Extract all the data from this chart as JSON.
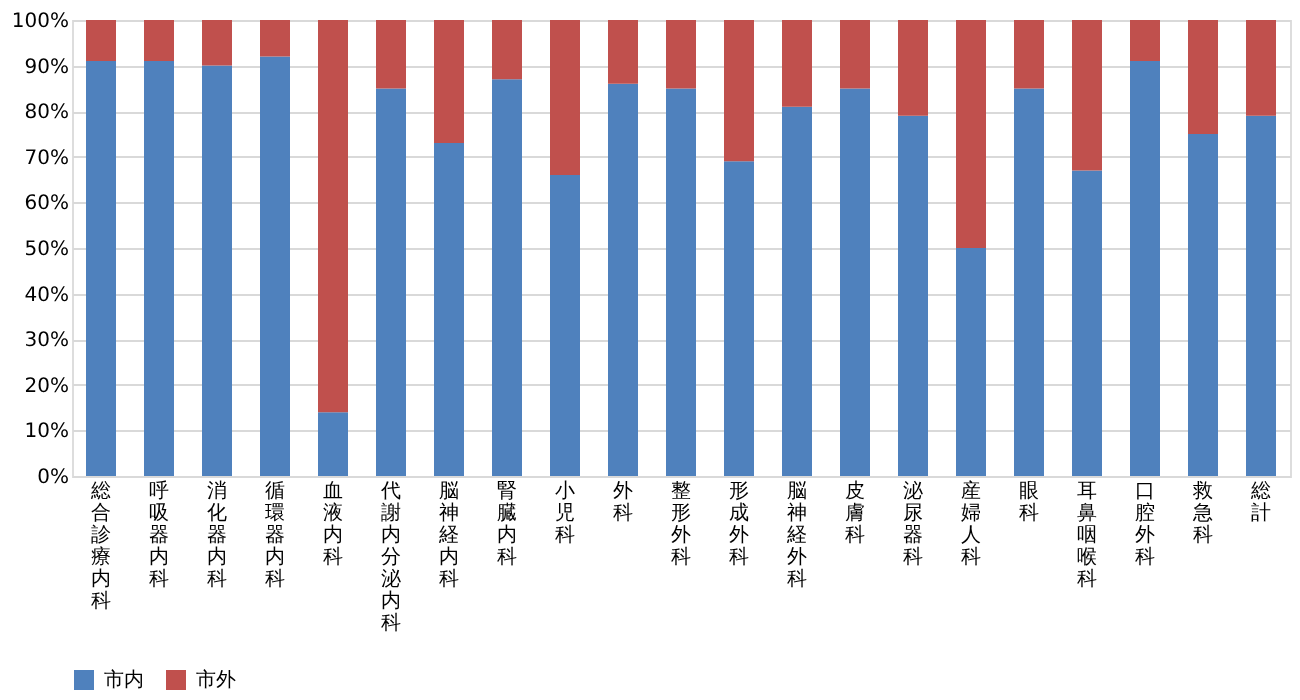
{
  "chart_data": {
    "type": "bar",
    "stacked": true,
    "categories": [
      "総合診療内科",
      "呼吸器内科",
      "消化器内科",
      "循環器内科",
      "血液内科",
      "代謝内分泌内科",
      "脳神経内科",
      "腎臓内科",
      "小児科",
      "外科",
      "整形外科",
      "形成外科",
      "脳神経外科",
      "皮膚科",
      "泌尿器科",
      "産婦人科",
      "眼科",
      "耳鼻咽喉科",
      "口腔外科",
      "救急科",
      "総計"
    ],
    "series": [
      {
        "name": "市内",
        "color": "#4f81bd",
        "values": [
          91,
          91,
          90,
          92,
          14,
          85,
          73,
          87,
          66,
          86,
          85,
          69,
          81,
          85,
          79,
          50,
          85,
          67,
          91,
          75,
          79
        ]
      },
      {
        "name": "市外",
        "color": "#c0504d",
        "values": [
          9,
          9,
          10,
          8,
          86,
          15,
          27,
          13,
          34,
          14,
          15,
          31,
          19,
          15,
          21,
          50,
          15,
          33,
          9,
          25,
          21
        ]
      }
    ],
    "ylim": [
      0,
      100
    ],
    "yticks": [
      {
        "value": 0,
        "label": "0%"
      },
      {
        "value": 10,
        "label": "10%"
      },
      {
        "value": 20,
        "label": "20%"
      },
      {
        "value": 30,
        "label": "30%"
      },
      {
        "value": 40,
        "label": "40%"
      },
      {
        "value": 50,
        "label": "50%"
      },
      {
        "value": 60,
        "label": "60%"
      },
      {
        "value": 70,
        "label": "70%"
      },
      {
        "value": 80,
        "label": "80%"
      },
      {
        "value": 90,
        "label": "90%"
      },
      {
        "value": 100,
        "label": "100%"
      }
    ],
    "grid": "y",
    "legend": "bottom"
  }
}
